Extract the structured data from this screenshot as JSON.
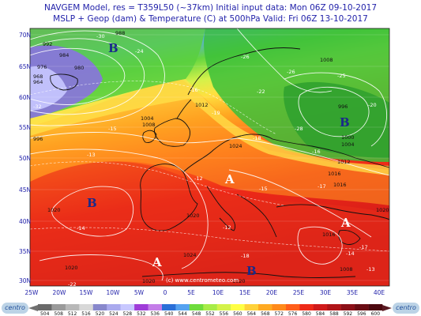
{
  "header": {
    "line1": "NAVGEM Model, res = T359L50 (~37km)    Initial input data: Mon 06Z 09-10-2017",
    "line2": "MSLP + Geop (dam) & Temperature (C) at 500hPa   Valid: Fri 06Z 13-10-2017"
  },
  "map": {
    "lat_labels": [
      "70N",
      "65N",
      "60N",
      "55N",
      "50N",
      "45N",
      "40N",
      "35N",
      "30N"
    ],
    "lon_labels": [
      "25W",
      "20W",
      "15W",
      "10W",
      "5W",
      "0",
      "5E",
      "10E",
      "15E",
      "20E",
      "25E",
      "30E",
      "35E",
      "40E"
    ],
    "watermark": "(c) www.centrometeo.com",
    "pressure_centers": [
      {
        "letter": "B",
        "kind": "low"
      },
      {
        "letter": "B",
        "kind": "low"
      },
      {
        "letter": "B",
        "kind": "low"
      },
      {
        "letter": "A",
        "kind": "high"
      },
      {
        "letter": "A",
        "kind": "high"
      },
      {
        "letter": "A",
        "kind": "high"
      },
      {
        "letter": "B",
        "kind": "low"
      }
    ],
    "isobar_labels": [
      "988",
      "984",
      "980",
      "992",
      "976",
      "968",
      "964",
      "996",
      "1004",
      "1008",
      "1012",
      "1024",
      "1020",
      "1020",
      "1024",
      "1020",
      "1020",
      "1008",
      "996",
      "1000",
      "1004",
      "1012",
      "1016",
      "1020",
      "1016",
      "1008",
      "1020",
      "1016"
    ],
    "temp_labels": [
      "-30",
      "-24",
      "-26",
      "-32",
      "-16",
      "-19",
      "-22",
      "-28",
      "-25",
      "-20",
      "-15",
      "-13",
      "-12",
      "-18",
      "-16",
      "-17",
      "-14",
      "-18",
      "-15",
      "-12",
      "-14",
      "-13",
      "-26",
      "-17",
      "-22"
    ]
  },
  "colorbar": {
    "ticks": [
      "504",
      "508",
      "512",
      "516",
      "520",
      "524",
      "528",
      "532",
      "536",
      "540",
      "544",
      "548",
      "552",
      "556",
      "560",
      "564",
      "568",
      "572",
      "576",
      "580",
      "584",
      "588",
      "592",
      "596",
      "600"
    ],
    "colors": [
      "#6a6a6a",
      "#9a9a9a",
      "#b8b8b8",
      "#d8d8d8",
      "#8888cc",
      "#aaaaee",
      "#c8c8ff",
      "#9f3cd8",
      "#c47de8",
      "#2a6fd8",
      "#55a2f0",
      "#6edc3c",
      "#a7ec48",
      "#d4f24a",
      "#ffff44",
      "#ffd23a",
      "#ffaa22",
      "#ff8a1a",
      "#ff5e1a",
      "#ee2a18",
      "#d01a1a",
      "#b01418",
      "#8c1018",
      "#6a0c14",
      "#4c0810"
    ]
  },
  "logos": {
    "left": "centro",
    "right": "centro"
  }
}
